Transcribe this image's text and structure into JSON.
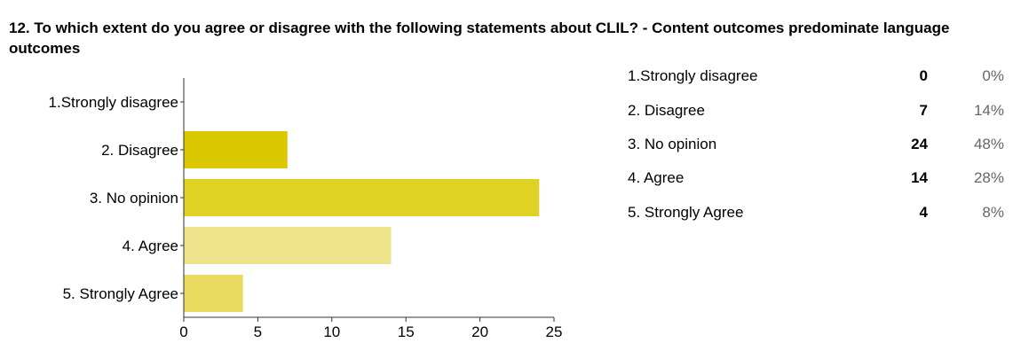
{
  "question": {
    "title": "12. To which extent do you agree or disagree with the following statements about CLIL? - Content outcomes predominate language outcomes"
  },
  "chart_data": {
    "type": "bar",
    "orientation": "horizontal",
    "categories": [
      "1.Strongly disagree",
      "2. Disagree",
      "3. No opinion",
      "4. Agree",
      "5. Strongly Agree"
    ],
    "values": [
      0,
      7,
      24,
      14,
      4
    ],
    "colors": [
      "#d4c200",
      "#dcc800",
      "#e0d223",
      "#eee38a",
      "#e8db60"
    ],
    "xticks": [
      "0",
      "5",
      "10",
      "15",
      "20",
      "25"
    ],
    "xlim": [
      0,
      25
    ],
    "grid": false,
    "title": "",
    "xlabel": "",
    "ylabel": ""
  },
  "summary": {
    "rows": [
      {
        "label": "1.Strongly disagree",
        "count": "0",
        "percent": "0%"
      },
      {
        "label": "2. Disagree",
        "count": "7",
        "percent": "14%"
      },
      {
        "label": "3. No opinion",
        "count": "24",
        "percent": "48%"
      },
      {
        "label": "4. Agree",
        "count": "14",
        "percent": "28%"
      },
      {
        "label": "5. Strongly Agree",
        "count": "4",
        "percent": "8%"
      }
    ]
  }
}
